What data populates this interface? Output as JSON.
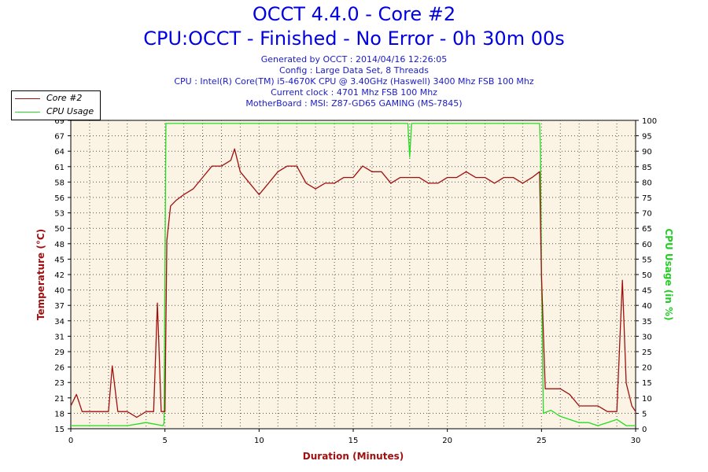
{
  "info": {
    "generated": "Generated by OCCT : 2014/04/16 12:26:05",
    "config": "Config : Large Data Set, 8 Threads",
    "cpu": "CPU : Intel(R) Core(TM) i5-4670K CPU @ 3.40GHz (Haswell) 3400 Mhz FSB 100 Mhz",
    "clock": "Current clock : 4701 Mhz FSB 100 Mhz",
    "motherboard": "MotherBoard : MSI: Z87-GD65 GAMING (MS-7845)"
  },
  "chart_data": {
    "type": "line",
    "title": "OCCT 4.4.0 - Core #2",
    "subtitle": "CPU:OCCT - Finished - No Error - 0h 30m 00s",
    "xlabel": "Duration (Minutes)",
    "ylabel": "Temperature (°C)",
    "y2label": "CPU Usage (in %)",
    "xlim": [
      0,
      30
    ],
    "ylim": [
      15,
      69
    ],
    "y2lim": [
      0,
      100
    ],
    "x_ticks": [
      "0",
      "5",
      "10",
      "15",
      "20",
      "25",
      "30"
    ],
    "y_ticks": [
      "15",
      "18",
      "21",
      "23",
      "26",
      "29",
      "31",
      "34",
      "37",
      "40",
      "42",
      "45",
      "48",
      "50",
      "53",
      "56",
      "58",
      "61",
      "64",
      "67",
      "69"
    ],
    "y2_ticks": [
      "0",
      "5",
      "10",
      "15",
      "20",
      "25",
      "30",
      "35",
      "40",
      "45",
      "50",
      "55",
      "60",
      "65",
      "70",
      "75",
      "80",
      "85",
      "90",
      "95",
      "100"
    ],
    "grid": true,
    "legend": "top-left",
    "colors": {
      "temperature": "#a01010",
      "cpu_usage": "#22dd22",
      "plot_bg": "#fbf3e3",
      "title": "#0000e0",
      "axis_label_left": "#a01010",
      "axis_label_right": "#22cc22"
    },
    "series": [
      {
        "name": "Core #2",
        "axis": "left",
        "x": [
          0,
          0.3,
          0.6,
          1.0,
          1.5,
          2.0,
          2.2,
          2.5,
          3.0,
          3.5,
          4.0,
          4.4,
          4.6,
          4.8,
          5.0,
          5.1,
          5.3,
          5.6,
          6.0,
          6.5,
          7.0,
          7.5,
          8.0,
          8.5,
          8.7,
          9.0,
          9.5,
          10.0,
          10.5,
          11.0,
          11.5,
          12.0,
          12.5,
          13.0,
          13.5,
          14.0,
          14.5,
          15.0,
          15.5,
          16.0,
          16.5,
          17.0,
          17.5,
          18.0,
          18.5,
          19.0,
          19.5,
          20.0,
          20.5,
          21.0,
          21.5,
          22.0,
          22.5,
          23.0,
          23.5,
          24.0,
          24.5,
          24.9,
          25.0,
          25.2,
          25.5,
          26.0,
          26.5,
          27.0,
          27.5,
          28.0,
          28.5,
          29.0,
          29.3,
          29.5,
          29.8,
          30.0
        ],
        "values": [
          19,
          21,
          18,
          18,
          18,
          18,
          26,
          18,
          18,
          17,
          18,
          18,
          37,
          18,
          18,
          48,
          54,
          55,
          56,
          57,
          59,
          61,
          61,
          62,
          64,
          60,
          58,
          56,
          58,
          60,
          61,
          61,
          58,
          57,
          58,
          58,
          59,
          59,
          61,
          60,
          60,
          58,
          59,
          59,
          59,
          58,
          58,
          59,
          59,
          60,
          59,
          59,
          58,
          59,
          59,
          58,
          59,
          60,
          42,
          22,
          22,
          22,
          21,
          19,
          19,
          19,
          18,
          18,
          41,
          23,
          19,
          18
        ]
      },
      {
        "name": "CPU Usage",
        "axis": "right",
        "x": [
          0,
          1.0,
          2.0,
          3.0,
          4.0,
          4.9,
          4.95,
          5.0,
          5.05,
          6.0,
          8.0,
          10.0,
          12.0,
          14.0,
          16.0,
          17.9,
          18.0,
          18.1,
          20.0,
          22.0,
          24.0,
          24.9,
          24.95,
          25.0,
          25.1,
          25.5,
          26.0,
          26.5,
          27.0,
          27.5,
          28.0,
          28.5,
          29.0,
          29.5,
          30.0
        ],
        "values": [
          1,
          1,
          1,
          1,
          2,
          1,
          2,
          50,
          99,
          99,
          99,
          99,
          99,
          99,
          99,
          99,
          88,
          99,
          99,
          99,
          99,
          99,
          90,
          50,
          5,
          6,
          4,
          3,
          2,
          2,
          1,
          2,
          3,
          1,
          1
        ]
      }
    ]
  }
}
